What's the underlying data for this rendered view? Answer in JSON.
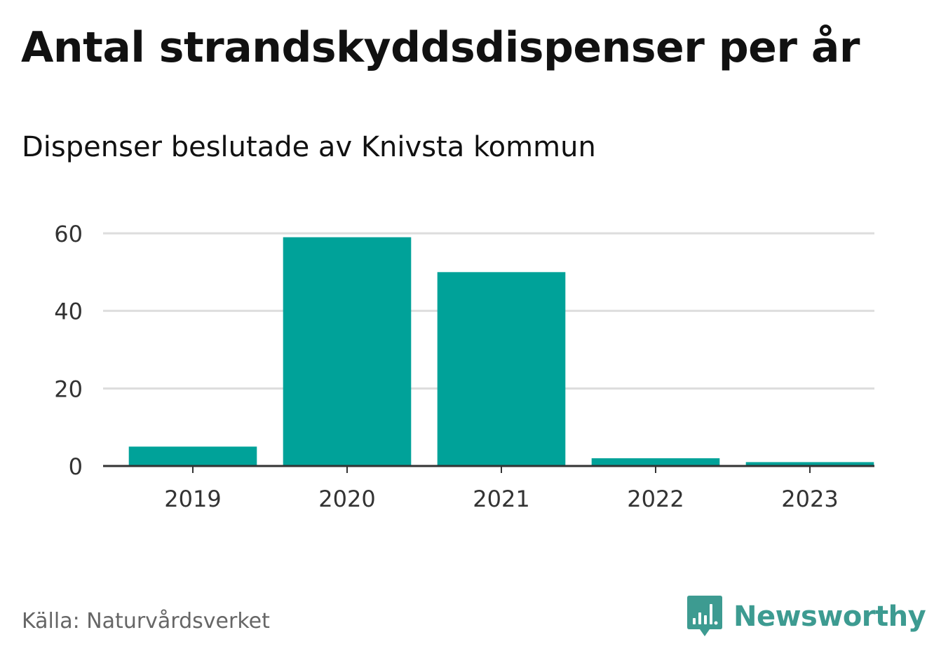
{
  "header": {
    "title": "Antal strandskyddsdispenser per år",
    "subtitle": "Dispenser beslutade av Knivsta kommun"
  },
  "footer": {
    "source": "Källa: Naturvårdsverket",
    "brand": "Newsworthy",
    "brand_icon": "bar-chart-speech-bubble-icon"
  },
  "colors": {
    "bar": "#00a299",
    "grid": "#dddddd",
    "axis": "#333333",
    "tick_label": "#333333",
    "brand": "#3d9b91",
    "source": "#666666"
  },
  "chart_data": {
    "type": "bar",
    "title": "Antal strandskyddsdispenser per år",
    "subtitle": "Dispenser beslutade av Knivsta kommun",
    "categories": [
      "2019",
      "2020",
      "2021",
      "2022",
      "2023"
    ],
    "values": [
      5,
      59,
      50,
      2,
      1
    ],
    "xlabel": "",
    "ylabel": "",
    "ylim": [
      0,
      60
    ],
    "yticks": [
      0,
      20,
      40,
      60
    ],
    "grid": true,
    "legend": false
  }
}
